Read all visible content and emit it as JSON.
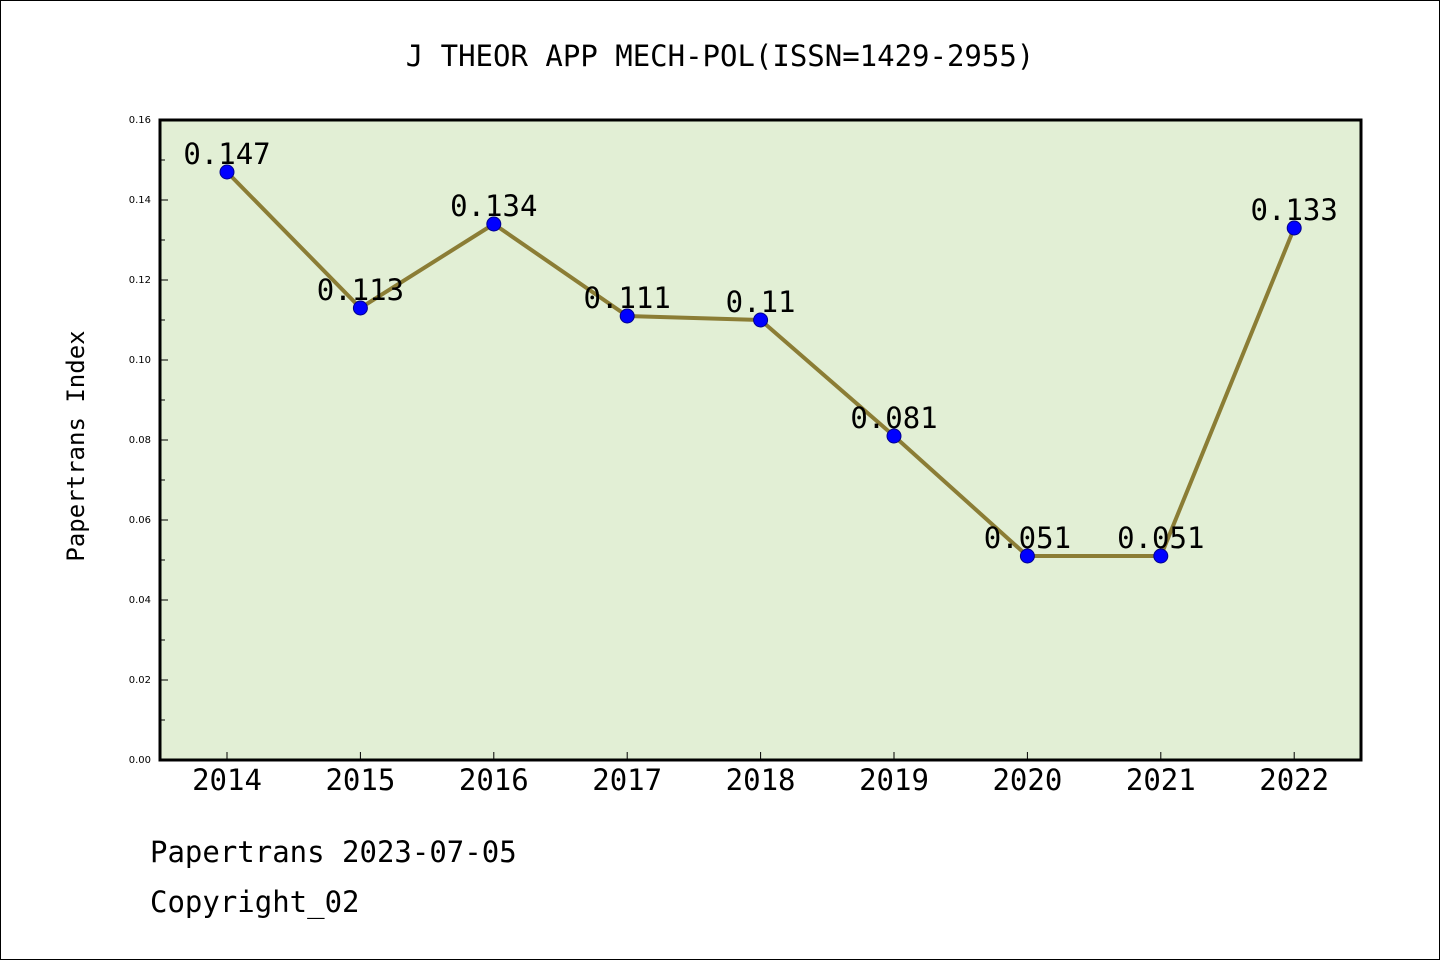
{
  "colors": {
    "plot_background": "#e2efd5",
    "line": "#8b7d35",
    "marker": "#0000ff",
    "axes": "#000000"
  },
  "footer": {
    "source": "Papertrans 2023-07-05",
    "copyright": "Copyright_02"
  },
  "chart_data": {
    "type": "line",
    "title": "J THEOR APP MECH-POL(ISSN=1429-2955)",
    "xlabel": "",
    "ylabel": "Papertrans Index",
    "categories": [
      "2014",
      "2015",
      "2016",
      "2017",
      "2018",
      "2019",
      "2020",
      "2021",
      "2022"
    ],
    "values": [
      0.147,
      0.113,
      0.134,
      0.111,
      0.11,
      0.081,
      0.051,
      0.051,
      0.133
    ],
    "data_labels": [
      "0.147",
      "0.113",
      "0.134",
      "0.111",
      "0.11",
      "0.081",
      "0.051",
      "0.051",
      "0.133"
    ],
    "ylim": [
      0,
      0.16
    ],
    "yticks": [
      "0.00",
      "0.02",
      "0.04",
      "0.06",
      "0.08",
      "0.10",
      "0.12",
      "0.14",
      "0.16"
    ],
    "grid": false,
    "legend": "none"
  }
}
